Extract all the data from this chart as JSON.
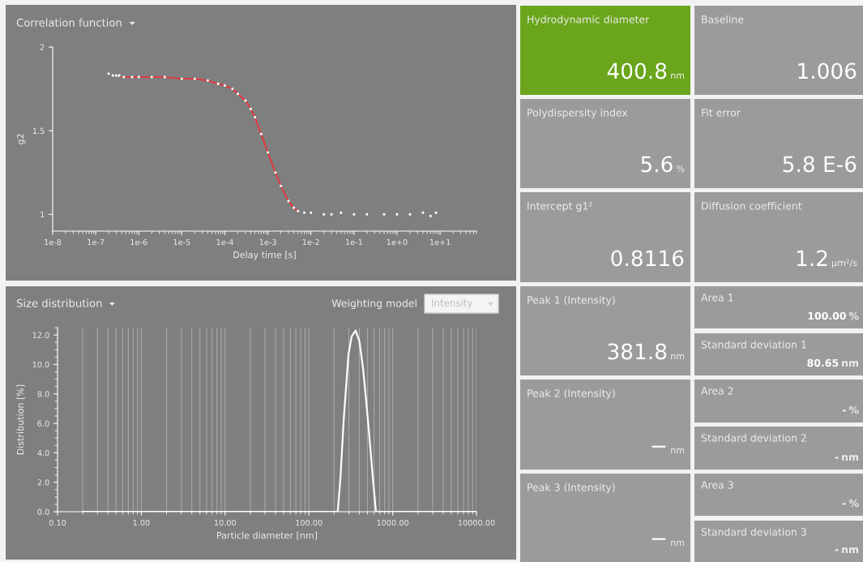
{
  "chart_data": [
    {
      "type": "scatter",
      "title": "Correlation function",
      "xlabel": "Delay time [s]",
      "ylabel": "g2",
      "log": "x",
      "marker": "circle",
      "xlim": [
        1e-08,
        70
      ],
      "ylim": [
        0.9,
        2
      ],
      "xticks": [
        {
          "value": 1e-08,
          "label": "1e-8"
        },
        {
          "value": 1e-07,
          "label": "1e-7"
        },
        {
          "value": 1e-06,
          "label": "1e-6"
        },
        {
          "value": 1e-05,
          "label": "1e-5"
        },
        {
          "value": 0.0001,
          "label": "1e-4"
        },
        {
          "value": 0.001,
          "label": "1e-3"
        },
        {
          "value": 0.01,
          "label": "1e-2"
        },
        {
          "value": 0.1,
          "label": "1e-1"
        },
        {
          "value": 1,
          "label": "1e+0"
        },
        {
          "value": 10,
          "label": "1e+1"
        }
      ],
      "yticks": [
        1,
        1.5,
        2
      ],
      "series": [
        {
          "type": "line",
          "marker": "none",
          "color": "#e8343a",
          "x": [
            4e-07,
            1e-06,
            2e-06,
            4e-06,
            1e-05,
            2e-05,
            4e-05,
            7e-05,
            0.0001,
            0.00015,
            0.0002,
            0.0003,
            0.0004,
            0.0005,
            0.0007,
            0.001,
            0.0015,
            0.002,
            0.003,
            0.004,
            0.005
          ],
          "values": [
            1.82,
            1.82,
            1.82,
            1.82,
            1.81,
            1.81,
            1.8,
            1.78,
            1.77,
            1.75,
            1.72,
            1.68,
            1.63,
            1.58,
            1.48,
            1.37,
            1.25,
            1.17,
            1.08,
            1.04,
            1.02
          ]
        },
        {
          "color": "#ffffff",
          "x": [
            2e-07,
            2.5e-07,
            3e-07,
            3.5e-07,
            4.5e-07,
            7e-07,
            1e-06,
            2e-06,
            4e-06,
            1e-05,
            2e-05,
            4e-05,
            7e-05,
            0.0001,
            0.00015,
            0.0002,
            0.0003,
            0.0004,
            0.0005,
            0.0007,
            0.001,
            0.0015,
            0.002,
            0.003,
            0.004,
            0.005,
            0.007,
            0.01,
            0.02,
            0.03,
            0.05,
            0.1,
            0.2,
            0.5,
            1,
            2,
            4,
            6,
            8
          ],
          "values": [
            1.84,
            1.83,
            1.83,
            1.83,
            1.82,
            1.82,
            1.82,
            1.82,
            1.82,
            1.81,
            1.81,
            1.8,
            1.78,
            1.77,
            1.75,
            1.72,
            1.68,
            1.63,
            1.58,
            1.48,
            1.37,
            1.25,
            1.17,
            1.08,
            1.04,
            1.02,
            1.01,
            1.01,
            1.0,
            1.0,
            1.01,
            1.0,
            1.0,
            1.0,
            1.0,
            1.0,
            1.01,
            0.99,
            1.01
          ]
        }
      ]
    },
    {
      "type": "line",
      "title": "Size distribution",
      "xlabel": "Particle diameter [nm]",
      "ylabel": "Distribution [%]",
      "log": "x",
      "grid": "x",
      "xlim": [
        0.1,
        10000
      ],
      "ylim": [
        0,
        12.5
      ],
      "xticks": [
        {
          "value": 0.1,
          "label": "0.10"
        },
        {
          "value": 1,
          "label": "1.00"
        },
        {
          "value": 10,
          "label": "10.00"
        },
        {
          "value": 100,
          "label": "100.00"
        },
        {
          "value": 1000,
          "label": "1000.00"
        },
        {
          "value": 10000,
          "label": "10000.00"
        }
      ],
      "yticks": [
        {
          "value": 0,
          "label": "0.0"
        },
        {
          "value": 2,
          "label": "2.0"
        },
        {
          "value": 4,
          "label": "4.0"
        },
        {
          "value": 6,
          "label": "6.0"
        },
        {
          "value": 8,
          "label": "8.0"
        },
        {
          "value": 10,
          "label": "10.0"
        },
        {
          "value": 12,
          "label": "12.0"
        }
      ],
      "annotations": [
        "Weighting model",
        "Intensity"
      ],
      "series": [
        {
          "color": "#ffffff",
          "x": [
            0.2,
            221,
            238,
            260,
            297,
            324,
            361,
            400,
            444,
            507,
            580,
            631,
            10000
          ],
          "values": [
            0,
            0,
            2.3,
            6.2,
            10.7,
            11.9,
            12.3,
            11.6,
            9.7,
            6.2,
            2.3,
            0,
            0
          ]
        }
      ]
    },
    {
      "type": "other",
      "annotations": [
        "Hydrodynamic diameter",
        "400.8",
        "nm",
        "Baseline",
        "1.006",
        "Polydispersity index",
        "5.6",
        "%",
        "Fit error",
        "5.8 E-6",
        "Intercept g1²",
        "0.8116",
        "Diffusion coefficient",
        "1.2",
        "µm²/s",
        "Peak 1 (Intensity)",
        "381.8",
        "nm",
        "Peak 2 (Intensity)",
        "−",
        "nm",
        "Peak 3 (Intensity)",
        "−",
        "nm",
        "Area 1",
        "100.00",
        "%",
        "Standard deviation 1",
        "80.65",
        "nm",
        "Area 2",
        "-",
        "%",
        "Standard deviation 2",
        "-",
        "nm",
        "Area 3",
        "-",
        "%",
        "Standard deviation 3",
        "-",
        "nm"
      ]
    }
  ]
}
